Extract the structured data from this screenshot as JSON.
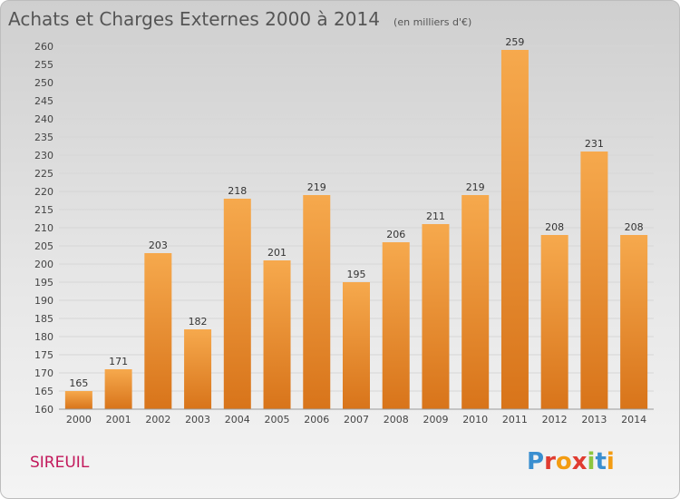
{
  "header": {
    "title": "Achats et Charges Externes 2000 à 2014",
    "unit": "(en milliers d'€)"
  },
  "footer": {
    "town": "SIREUIL",
    "brand": "Proxiti",
    "brand_colors": [
      "#3a8fd0",
      "#e03c31",
      "#f39c12",
      "#e03c31",
      "#8cc63f",
      "#3a8fd0",
      "#f39c12"
    ]
  },
  "colors": {
    "bar_top": "#f6a94d",
    "bar_bottom": "#d8741a",
    "grid": "#d6d6d6",
    "axis": "#999999"
  },
  "chart_data": {
    "type": "bar",
    "categories": [
      "2000",
      "2001",
      "2002",
      "2003",
      "2004",
      "2005",
      "2006",
      "2007",
      "2008",
      "2009",
      "2010",
      "2011",
      "2012",
      "2013",
      "2014"
    ],
    "values": [
      165,
      171,
      203,
      182,
      218,
      201,
      219,
      195,
      206,
      211,
      219,
      259,
      208,
      231,
      208
    ],
    "ylim": [
      160,
      260
    ],
    "yticks": [
      160,
      165,
      170,
      175,
      180,
      185,
      190,
      195,
      200,
      205,
      210,
      215,
      220,
      225,
      230,
      235,
      240,
      245,
      250,
      255,
      260
    ],
    "grid": true,
    "data_labels": true
  }
}
